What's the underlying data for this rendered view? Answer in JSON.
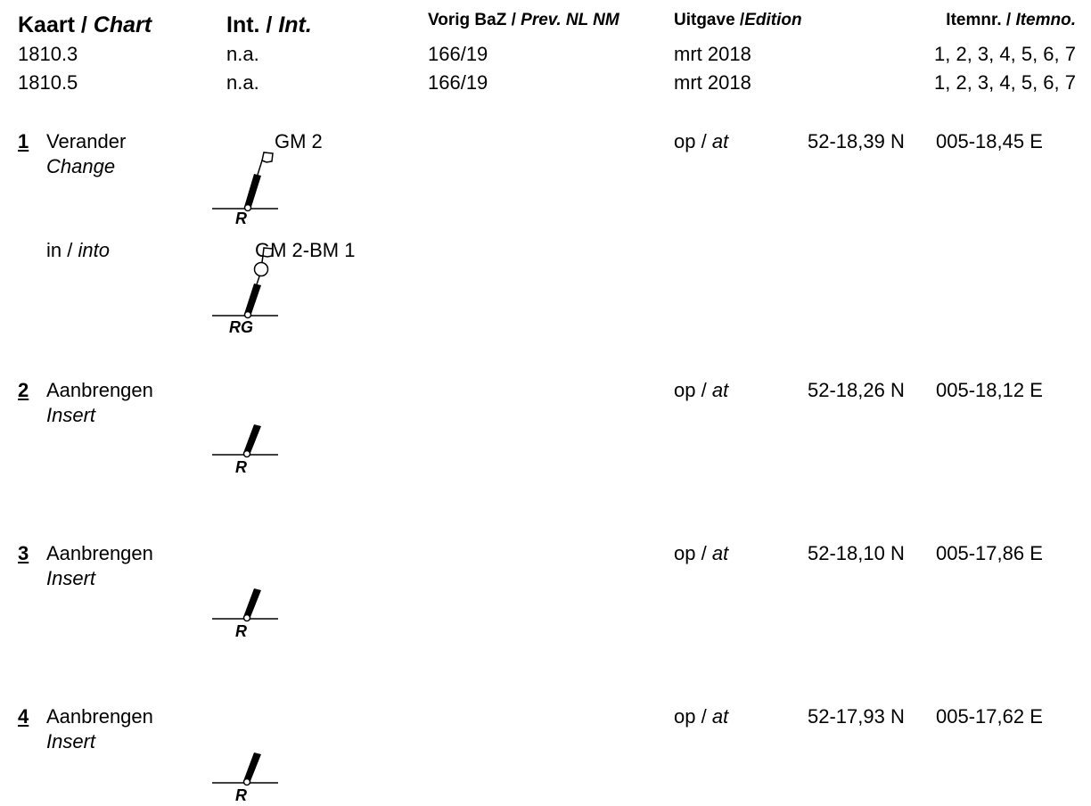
{
  "header": {
    "chart_nl": "Kaart /",
    "chart_en": "Chart",
    "int_nl": "Int. /",
    "int_en": "Int.",
    "prev_nl": "Vorig BaZ /",
    "prev_en": "Prev. NL NM",
    "edition_nl": "Uitgave /",
    "edition_en": "Edition",
    "itemno_nl": "Itemnr. /",
    "itemno_en": "Itemno."
  },
  "charts": [
    {
      "chart": "1810.3",
      "int": "n.a.",
      "prev": "166/19",
      "edition": "mrt 2018",
      "items": "1, 2, 3, 4, 5, 6, 7"
    },
    {
      "chart": "1810.5",
      "int": "n.a.",
      "prev": "166/19",
      "edition": "mrt 2018",
      "items": "1, 2, 3, 4, 5, 6, 7"
    }
  ],
  "op_nl": "op /",
  "at_en": "at",
  "items": [
    {
      "number": "1",
      "action_nl": "Verander",
      "action_en": "Change",
      "buoy_name": "GM 2",
      "buoy_label": "R",
      "lat": "52-18,39 N",
      "lon": "005-18,45 E",
      "into_nl": "in /",
      "into_en": "into",
      "new_buoy_name": "GM 2-BM 1",
      "new_buoy_label": "RG"
    },
    {
      "number": "2",
      "action_nl": "Aanbrengen",
      "action_en": "Insert",
      "buoy_label": "R",
      "lat": "52-18,26 N",
      "lon": "005-18,12 E"
    },
    {
      "number": "3",
      "action_nl": "Aanbrengen",
      "action_en": "Insert",
      "buoy_label": "R",
      "lat": "52-18,10 N",
      "lon": "005-17,86 E"
    },
    {
      "number": "4",
      "action_nl": "Aanbrengen",
      "action_en": "Insert",
      "buoy_label": "R",
      "lat": "52-17,93 N",
      "lon": "005-17,62 E"
    }
  ]
}
